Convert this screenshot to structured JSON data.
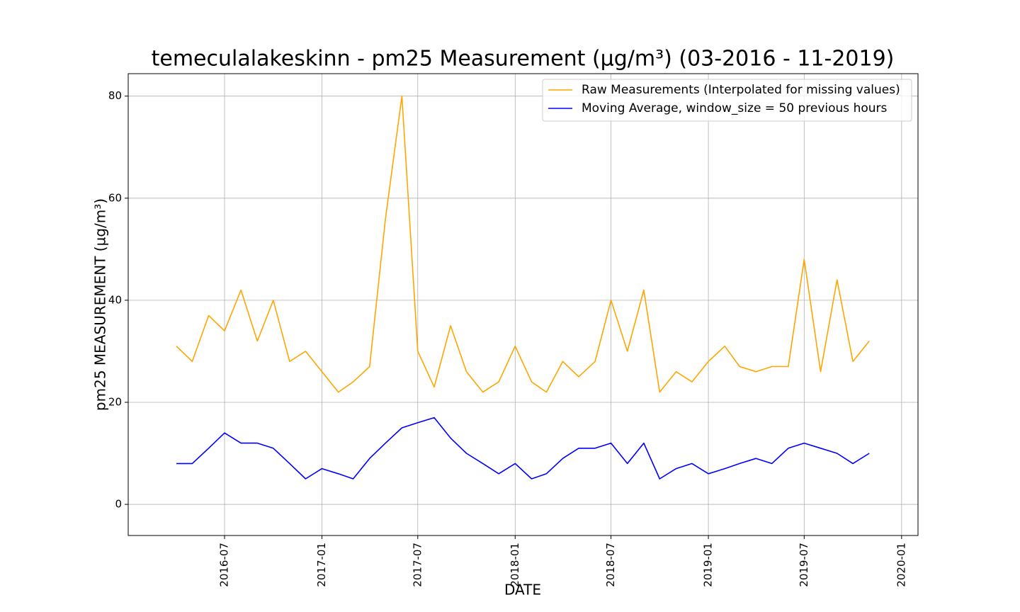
{
  "chart_data": {
    "type": "line",
    "title": "temeculalakeskinn - pm25 Measurement (µg/m³) (03-2016 - 11-2019)",
    "xlabel": "DATE",
    "ylabel": "pm25 MEASUREMENT (µg/m³)",
    "x": [
      "2016-04",
      "2016-05",
      "2016-06",
      "2016-07",
      "2016-08",
      "2016-09",
      "2016-10",
      "2016-11",
      "2016-12",
      "2017-01",
      "2017-02",
      "2017-03",
      "2017-04",
      "2017-05",
      "2017-06",
      "2017-07",
      "2017-08",
      "2017-09",
      "2017-10",
      "2017-11",
      "2017-12",
      "2018-01",
      "2018-02",
      "2018-03",
      "2018-04",
      "2018-05",
      "2018-06",
      "2018-07",
      "2018-08",
      "2018-09",
      "2018-10",
      "2018-11",
      "2018-12",
      "2019-01",
      "2019-02",
      "2019-03",
      "2019-04",
      "2019-05",
      "2019-06",
      "2019-07",
      "2019-08",
      "2019-09",
      "2019-10",
      "2019-11"
    ],
    "series": [
      {
        "name": "Raw Measurements (Interpolated for missing values)",
        "color": "#ffa500",
        "values": [
          31,
          28,
          37,
          34,
          42,
          32,
          40,
          28,
          30,
          26,
          22,
          24,
          27,
          56,
          80,
          30,
          23,
          35,
          26,
          22,
          24,
          31,
          24,
          22,
          28,
          25,
          28,
          40,
          30,
          42,
          22,
          26,
          24,
          28,
          31,
          27,
          26,
          27,
          27,
          48,
          26,
          44,
          28,
          32
        ]
      },
      {
        "name": "Moving Average, window_size = 50 previous hours",
        "color": "#0000ff",
        "values": [
          8,
          8,
          11,
          14,
          12,
          12,
          11,
          8,
          5,
          7,
          6,
          5,
          9,
          12,
          15,
          16,
          17,
          13,
          10,
          8,
          6,
          8,
          5,
          6,
          9,
          11,
          11,
          12,
          8,
          12,
          5,
          7,
          8,
          6,
          7,
          8,
          9,
          8,
          11,
          12,
          11,
          10,
          8,
          10
        ]
      }
    ],
    "xlim": [
      "2016-01",
      "2020-02"
    ],
    "xticks": [
      "2016-07",
      "2017-01",
      "2017-07",
      "2018-01",
      "2018-07",
      "2019-01",
      "2019-07",
      "2020-01"
    ],
    "ylim": [
      -6.1,
      84.4
    ],
    "yticks": [
      0,
      20,
      40,
      60,
      80
    ],
    "grid": true,
    "legend": "upper-right"
  }
}
